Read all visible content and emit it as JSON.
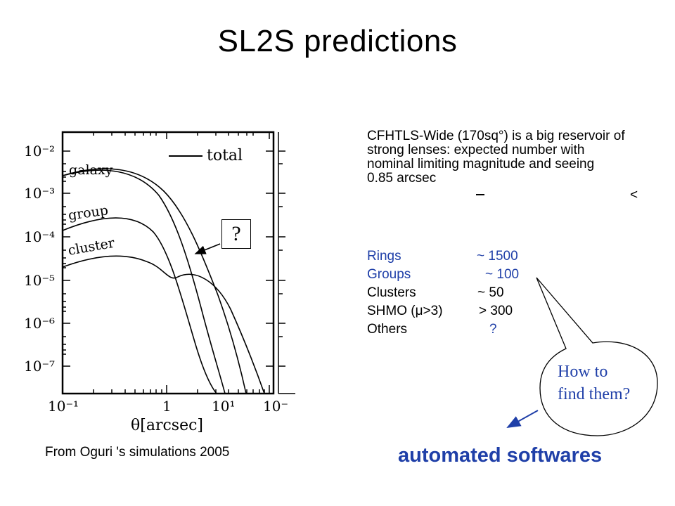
{
  "slide": {
    "title": "SL2S predictions",
    "caption": "From Oguri 's simulations 2005",
    "description": "CFHTLS-Wide (170sq°) is a big reservoir of strong lenses: expected number with nominal limiting magnitude and seeing",
    "description_end": "0.85 arcsec",
    "lt_symbol": "<",
    "question_box": "?",
    "bubble_line1": "How to",
    "bubble_line2": "find them?",
    "automated": "automated softwares"
  },
  "predictions": [
    {
      "name": "Rings",
      "value": "~ 1500"
    },
    {
      "name": "Groups",
      "value": "~ 100"
    },
    {
      "name": "Clusters",
      "value": "~ 50"
    },
    {
      "name": "SHMO (μ>3)",
      "value": "> 300"
    },
    {
      "name": "Others",
      "value": "?"
    }
  ],
  "plot": {
    "y_ticks": [
      "10⁻²",
      "10⁻³",
      "10⁻⁴",
      "10⁻⁵",
      "10⁻⁶",
      "10⁻⁷"
    ],
    "x_ticks": [
      "10⁻¹",
      "1",
      "10¹",
      "10⁻"
    ],
    "x_label": "θ[arcsec]",
    "legend_label": "total",
    "curve_labels": [
      "galaxy",
      "group",
      "cluster"
    ]
  },
  "colors": {
    "accent": "#1f3fa8",
    "text": "#000000"
  }
}
